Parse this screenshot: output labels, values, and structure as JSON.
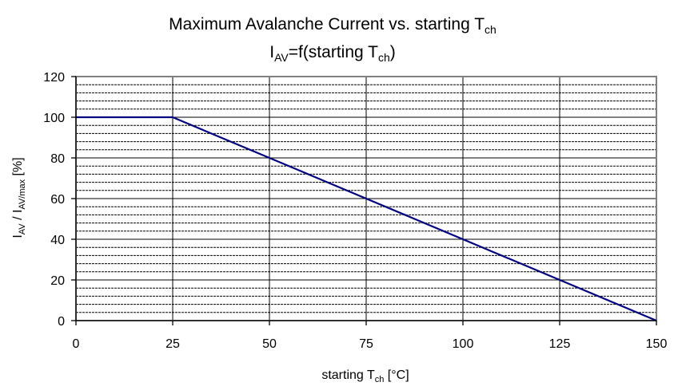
{
  "chart_data": {
    "type": "line",
    "title": {
      "line1_main": "Maximum Avalanche Current vs. starting T",
      "line1_sub": "ch",
      "line2_prefix": "I",
      "line2_prefix_sub": "AV",
      "line2_mid": "=f(starting T",
      "line2_mid_sub": "ch",
      "line2_end": ")"
    },
    "xlabel": {
      "main": "starting T",
      "sub": "ch",
      "suffix": " [°C]"
    },
    "ylabel": {
      "p1": "I",
      "p1_sub": "AV",
      "p2": " / I",
      "p2_sub": "AV/max",
      "p3": " [%]"
    },
    "xlim": [
      0,
      150
    ],
    "ylim": [
      0,
      120
    ],
    "x_ticks": [
      0,
      25,
      50,
      75,
      100,
      125,
      150
    ],
    "y_ticks": [
      0,
      20,
      40,
      60,
      80,
      100,
      120
    ],
    "y_minor_step": 4,
    "grid": true,
    "series": [
      {
        "x": [
          0,
          25,
          150
        ],
        "y": [
          100,
          100,
          0
        ],
        "color": "#000080"
      }
    ]
  }
}
